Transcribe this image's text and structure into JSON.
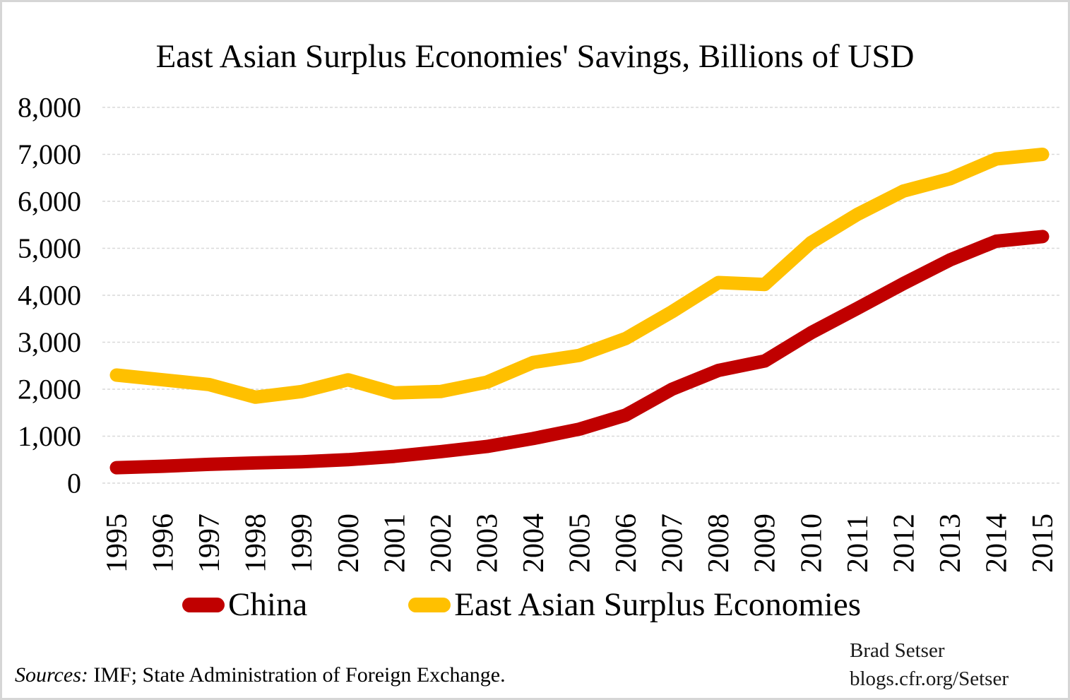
{
  "title": "East Asian Surplus Economies' Savings, Billions of USD",
  "legend": [
    {
      "label": "China",
      "color": "#C00000"
    },
    {
      "label": "East Asian Surplus Economies",
      "color": "#FFC000"
    }
  ],
  "source_note": {
    "prefix": "Sources:",
    "text": " IMF; State Administration of Foreign Exchange."
  },
  "attribution": {
    "line1": "Brad Setser",
    "line2": "blogs.cfr.org/Setser"
  },
  "colors": {
    "china_line": "#C00000",
    "east_asia_line": "#FFC000",
    "gridline": "#D9D9D9",
    "text": "#000000"
  },
  "y_axis_tick_labels": [
    "0",
    "1,000",
    "2,000",
    "3,000",
    "4,000",
    "5,000",
    "6,000",
    "7,000",
    "8,000"
  ],
  "chart_data": {
    "type": "line",
    "title": "East Asian Surplus Economies' Savings, Billions of USD",
    "x": [
      1995,
      1996,
      1997,
      1998,
      1999,
      2000,
      2001,
      2002,
      2003,
      2004,
      2005,
      2006,
      2007,
      2008,
      2009,
      2010,
      2011,
      2012,
      2013,
      2014,
      2015
    ],
    "series": [
      {
        "name": "China",
        "color": "#C00000",
        "values": [
          330,
          360,
          400,
          430,
          455,
          500,
          570,
          670,
          780,
          950,
          1150,
          1450,
          2000,
          2400,
          2600,
          3200,
          3720,
          4250,
          4750,
          5150,
          5250
        ]
      },
      {
        "name": "East Asian Surplus Economies",
        "color": "#FFC000",
        "values": [
          2300,
          2200,
          2100,
          1830,
          1950,
          2200,
          1920,
          1950,
          2150,
          2570,
          2720,
          3080,
          3650,
          4270,
          4230,
          5120,
          5720,
          6220,
          6480,
          6900,
          7000
        ]
      }
    ],
    "xlabel": "",
    "ylabel": "",
    "ylim": [
      0,
      8000
    ],
    "ytick_interval": 1000,
    "grid": "horizontal-dashed",
    "legend_position": "bottom"
  }
}
